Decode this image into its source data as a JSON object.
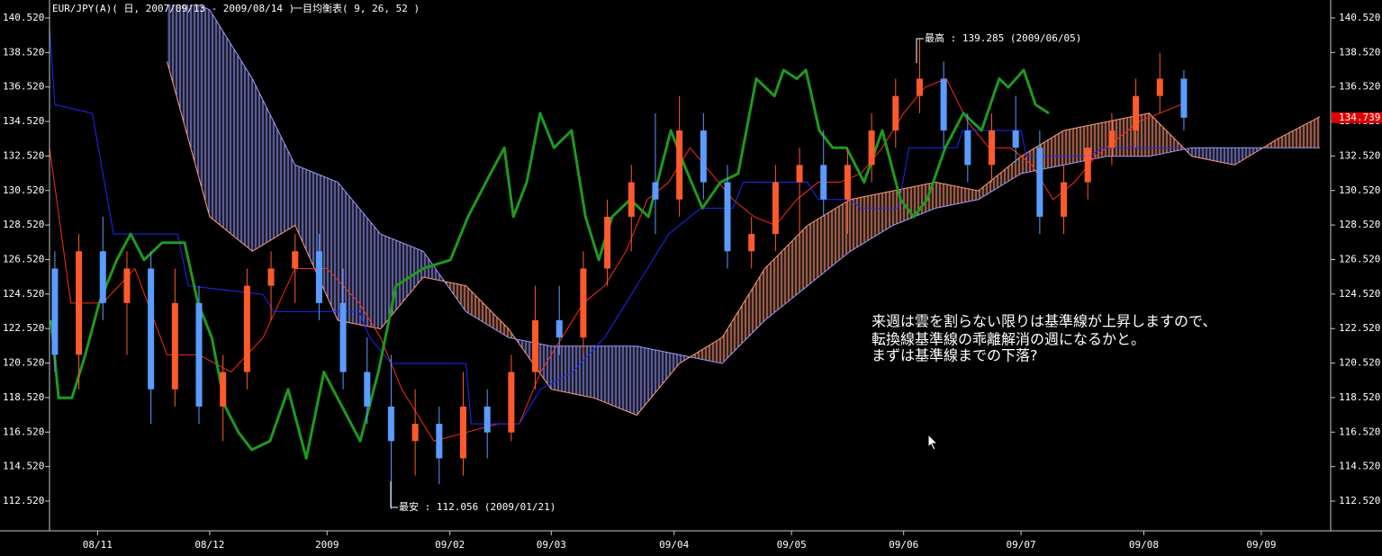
{
  "chart_data": {
    "type": "candlestick",
    "title": "EUR/JPY(A)( 日, 2007/09/13 - 2009/08/14 )",
    "indicator": "一目均衡表( 9, 26, 52 )",
    "x": [
      1,
      5.5,
      10,
      14.5,
      19,
      23.5,
      28,
      32.5,
      37,
      41.5,
      46,
      50.5,
      55,
      59.5,
      64,
      68.5,
      73,
      77.5,
      82,
      86.5,
      91,
      95.5,
      100,
      104.5,
      109,
      113.5,
      118,
      122.5,
      127,
      131.5,
      136,
      140.5,
      145,
      149.5,
      154,
      158.5,
      163,
      167.5,
      172,
      176.5,
      181,
      185.5,
      190,
      194.5,
      199,
      203.5,
      208,
      212.5
    ],
    "open": [
      126,
      121,
      127,
      124,
      126,
      119,
      124,
      118,
      120,
      125,
      126,
      127,
      124,
      120,
      118,
      116,
      117,
      115,
      118,
      116.5,
      120,
      123,
      122,
      126,
      129,
      131,
      130,
      134,
      131,
      127,
      128,
      131,
      132,
      130,
      132,
      134,
      136,
      137,
      134,
      132,
      134,
      133,
      129,
      131,
      133,
      134,
      136,
      137
    ],
    "high": [
      127,
      128,
      129,
      127,
      127,
      126,
      125,
      121,
      126,
      127,
      128,
      128,
      126,
      122,
      121,
      119,
      118,
      120,
      119,
      121,
      125,
      125,
      127,
      130,
      132,
      135,
      136,
      135,
      132,
      129,
      132,
      133,
      134,
      133,
      135,
      137,
      139.285,
      138,
      135,
      135,
      136,
      134,
      132,
      134,
      135,
      137,
      138.5,
      137.5
    ],
    "low": [
      120,
      119,
      123,
      121,
      117,
      118,
      117,
      116,
      119,
      123,
      124,
      123,
      119,
      117,
      112.056,
      114,
      113.5,
      114,
      115,
      116,
      119,
      121,
      121,
      125,
      127,
      128,
      129,
      130,
      126,
      126,
      127,
      128,
      129,
      128,
      131,
      133,
      135,
      133,
      131,
      131,
      132,
      128,
      128,
      130,
      132,
      133,
      135,
      134
    ],
    "close": [
      121,
      127,
      124,
      126,
      119,
      124,
      118,
      120,
      125,
      126,
      127,
      124,
      120,
      118,
      116,
      117,
      115,
      118,
      116.5,
      120,
      123,
      122,
      126,
      129,
      131,
      130,
      134,
      131,
      127,
      128,
      131,
      132,
      130,
      132,
      134,
      136,
      137,
      134,
      132,
      134,
      133,
      129,
      131,
      133,
      134,
      136,
      137,
      134.739
    ],
    "up_color": "#ff5a2a",
    "down_color": "#5a9cff",
    "lines": [
      {
        "color": "#ff2a1a",
        "x": [
          0,
          4,
          10,
          16,
          22,
          28,
          34,
          40,
          46,
          52,
          58,
          62,
          66,
          72,
          78,
          84,
          88,
          92,
          96,
          100,
          104,
          108,
          112,
          116,
          120,
          124,
          128,
          132,
          136,
          140,
          144,
          148,
          152,
          156,
          160,
          164,
          168,
          172,
          176,
          180,
          184,
          188,
          192,
          196,
          200,
          204,
          208,
          212
        ],
        "values": [
          133,
          124,
          124,
          126,
          121,
          121,
          120,
          122,
          126,
          126,
          124,
          122,
          119,
          116,
          116.5,
          117,
          117,
          120,
          122,
          124,
          125,
          127,
          130,
          131,
          133,
          131.5,
          130,
          129,
          128.5,
          130,
          131,
          131,
          131.5,
          133,
          135,
          136.5,
          137,
          134.5,
          133,
          133,
          132,
          130,
          131,
          132.5,
          133.5,
          134.5,
          135,
          135.5
        ]
      },
      {
        "color": "#1a2aff",
        "x": [
          0,
          1,
          8,
          12,
          24,
          26,
          40,
          42,
          58,
          60,
          64,
          78,
          79,
          88,
          92,
          98,
          104,
          110,
          116,
          122,
          128,
          130,
          142,
          144,
          150,
          152,
          159,
          161,
          170,
          171,
          182,
          183,
          195,
          197,
          212
        ],
        "values": [
          140,
          135.5,
          135,
          128,
          128,
          125,
          124.5,
          123.5,
          123.5,
          122,
          120.5,
          120.5,
          117,
          117,
          119,
          120,
          122,
          125,
          128,
          129.5,
          129.5,
          131,
          131,
          130,
          130,
          129.5,
          129.5,
          133,
          133,
          134,
          134,
          132.5,
          132.5,
          133,
          133
        ]
      },
      {
        "color": "#1e9a1e",
        "x": [
          0.3,
          1.7,
          4.2,
          6.7,
          9.3,
          12.6,
          15.2,
          17.7,
          21.1,
          25.3,
          27.8,
          30.4,
          32.9,
          35.4,
          37.9,
          41.3,
          44.7,
          48.1,
          51.4,
          54.8,
          58.2,
          61.6,
          64.9,
          70,
          75.1,
          78.4,
          82.6,
          85.2,
          86.9,
          89.4,
          91.9,
          94.5,
          97.8,
          100.4,
          102.9,
          105.4,
          108.8,
          112.2,
          116.4,
          118.9,
          122.3,
          125.7,
          129,
          132.4,
          135.8,
          137.5,
          140,
          141.7,
          144.2,
          146.7,
          149.3,
          152.6,
          156,
          159.4,
          161.9,
          164.4,
          167.8,
          171.2,
          174.6,
          177.9,
          179.6,
          182.5,
          184.7,
          187.2
        ],
        "values": [
          123,
          118.5,
          118.5,
          121,
          124,
          126.5,
          128,
          126.5,
          127.5,
          127.5,
          124,
          122,
          118,
          116.5,
          115.5,
          116,
          119,
          115,
          120,
          118,
          116,
          120,
          125,
          126,
          126.5,
          129,
          131.5,
          133,
          129,
          131,
          135,
          133,
          134,
          129,
          126.5,
          129,
          130,
          129,
          134,
          132,
          129.5,
          131,
          131.5,
          137,
          136,
          137.5,
          137,
          137.5,
          134,
          133,
          133,
          131,
          134,
          130,
          129,
          130,
          133,
          135,
          134,
          137,
          136.5,
          137.5,
          135.5,
          135
        ]
      }
    ],
    "cloud": {
      "x": [
        22,
        30,
        38,
        46,
        54,
        62,
        70,
        78,
        86,
        94,
        102,
        110,
        118,
        126,
        134,
        142,
        150,
        158,
        166,
        174,
        182,
        190,
        198,
        206,
        214,
        222,
        230,
        238
      ],
      "span_a": [
        138,
        129,
        127,
        128.5,
        123,
        122.5,
        125.5,
        125,
        122.5,
        119,
        118.5,
        117.5,
        120.5,
        122,
        126,
        128.5,
        130,
        130.5,
        131,
        130.5,
        132.5,
        134,
        134.5,
        135,
        132.5,
        132,
        133.5,
        134.8
      ],
      "span_b": [
        142,
        141,
        137,
        132,
        131,
        128,
        127,
        123.5,
        122,
        121.5,
        121.5,
        121.5,
        121,
        120.5,
        123,
        125,
        127,
        128.5,
        129.5,
        130,
        131.5,
        132,
        132.5,
        132.5,
        133,
        133,
        133,
        133
      ],
      "bull_color": "#ff9a7a",
      "bear_color": "#9a9aff"
    },
    "xlim": [
      0,
      240
    ],
    "xticks": [
      {
        "value": 9,
        "label": "08/11"
      },
      {
        "value": 30,
        "label": "08/12"
      },
      {
        "value": 52,
        "label": "2009"
      },
      {
        "value": 75,
        "label": "09/02"
      },
      {
        "value": 94,
        "label": "09/03"
      },
      {
        "value": 117,
        "label": "09/04"
      },
      {
        "value": 139,
        "label": "09/05"
      },
      {
        "value": 160,
        "label": "09/06"
      },
      {
        "value": 182,
        "label": "09/07"
      },
      {
        "value": 205,
        "label": "09/08"
      },
      {
        "value": 227,
        "label": "09/09"
      }
    ],
    "ylim": [
      110.8,
      141.3
    ],
    "yticks": [
      {
        "value": 112.52,
        "label": "112.520"
      },
      {
        "value": 114.52,
        "label": "114.520"
      },
      {
        "value": 116.52,
        "label": "116.520"
      },
      {
        "value": 118.52,
        "label": "118.520"
      },
      {
        "value": 120.52,
        "label": "120.520"
      },
      {
        "value": 122.52,
        "label": "122.520"
      },
      {
        "value": 124.52,
        "label": "124.520"
      },
      {
        "value": 126.52,
        "label": "126.520"
      },
      {
        "value": 128.52,
        "label": "128.520"
      },
      {
        "value": 130.52,
        "label": "130.520"
      },
      {
        "value": 132.52,
        "label": "132.520"
      },
      {
        "value": 134.52,
        "label": "134.520"
      },
      {
        "value": 136.52,
        "label": "136.520"
      },
      {
        "value": 138.52,
        "label": "138.520"
      },
      {
        "value": 140.52,
        "label": "140.520"
      }
    ],
    "last_price": 134.739,
    "last_price_color": "#e00000",
    "high_note": "最高 : 139.285 (2009/06/05)",
    "low_note": "最安 : 112.056 (2009/01/21)",
    "comment": [
      "来週は雲を割らない限りは基準線が上昇しますので、",
      "転換線基準線の乖離解消の週になるかと。",
      "まずは基準線までの下落?"
    ]
  }
}
